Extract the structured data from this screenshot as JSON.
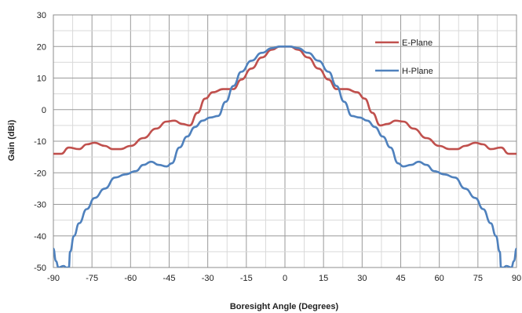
{
  "chart_data": {
    "type": "line",
    "title": "",
    "xlabel": "Boresight Angle (Degrees)",
    "ylabel": "Gain (dBi)",
    "xlim": [
      -90,
      90
    ],
    "ylim": [
      -50,
      30
    ],
    "xticks": [
      -90,
      -75,
      -60,
      -45,
      -30,
      -15,
      0,
      15,
      30,
      45,
      60,
      75,
      90
    ],
    "yticks": [
      30,
      20,
      10,
      0,
      -10,
      -20,
      -30,
      -40,
      -50
    ],
    "grid": true,
    "legend_position": "top-right",
    "series": [
      {
        "name": "E-Plane",
        "color": "#c0504d",
        "points": [
          [
            -90,
            -14
          ],
          [
            -87,
            -14
          ],
          [
            -84,
            -12
          ],
          [
            -80,
            -12.5
          ],
          [
            -77,
            -11
          ],
          [
            -74,
            -10.5
          ],
          [
            -70,
            -11.5
          ],
          [
            -67,
            -12.5
          ],
          [
            -64,
            -12.5
          ],
          [
            -60,
            -11.5
          ],
          [
            -55,
            -9
          ],
          [
            -50,
            -6
          ],
          [
            -46,
            -3.8
          ],
          [
            -43,
            -3.5
          ],
          [
            -40,
            -4.5
          ],
          [
            -37,
            -5
          ],
          [
            -34,
            -1
          ],
          [
            -31,
            3.5
          ],
          [
            -28,
            5.5
          ],
          [
            -24,
            6.5
          ],
          [
            -20,
            6.5
          ],
          [
            -17,
            9.5
          ],
          [
            -13,
            13
          ],
          [
            -9,
            16.5
          ],
          [
            -5,
            19
          ],
          [
            -2,
            20
          ],
          [
            0,
            20
          ],
          [
            2,
            20
          ],
          [
            5,
            19
          ],
          [
            9,
            16.5
          ],
          [
            13,
            13
          ],
          [
            17,
            9.5
          ],
          [
            20,
            6.5
          ],
          [
            24,
            6.5
          ],
          [
            28,
            5.5
          ],
          [
            31,
            3.5
          ],
          [
            34,
            -1
          ],
          [
            37,
            -5
          ],
          [
            40,
            -4.5
          ],
          [
            43,
            -3.5
          ],
          [
            46,
            -3.8
          ],
          [
            50,
            -6
          ],
          [
            55,
            -9
          ],
          [
            60,
            -11.5
          ],
          [
            64,
            -12.5
          ],
          [
            67,
            -12.5
          ],
          [
            70,
            -11.5
          ],
          [
            74,
            -10.5
          ],
          [
            77,
            -11
          ],
          [
            80,
            -12.5
          ],
          [
            84,
            -12
          ],
          [
            87,
            -14
          ],
          [
            90,
            -14
          ]
        ]
      },
      {
        "name": "H-Plane",
        "color": "#4f81bd",
        "points": [
          [
            -90,
            -44
          ],
          [
            -89,
            -48
          ],
          [
            -88,
            -50
          ],
          [
            -86,
            -49.5
          ],
          [
            -85,
            -50
          ],
          [
            -84,
            -50
          ],
          [
            -83.5,
            -45
          ],
          [
            -82,
            -40
          ],
          [
            -80,
            -36
          ],
          [
            -77,
            -31.5
          ],
          [
            -74,
            -28
          ],
          [
            -70,
            -25
          ],
          [
            -66,
            -21.5
          ],
          [
            -62,
            -20.5
          ],
          [
            -58,
            -19.5
          ],
          [
            -55,
            -17.5
          ],
          [
            -52,
            -16.5
          ],
          [
            -49,
            -17.5
          ],
          [
            -46,
            -18
          ],
          [
            -44,
            -17
          ],
          [
            -41,
            -12
          ],
          [
            -38,
            -8.5
          ],
          [
            -35,
            -5.5
          ],
          [
            -32,
            -3.5
          ],
          [
            -29,
            -2.5
          ],
          [
            -26,
            -2
          ],
          [
            -23,
            2.5
          ],
          [
            -20,
            7.5
          ],
          [
            -17,
            12
          ],
          [
            -13,
            15.5
          ],
          [
            -9,
            18
          ],
          [
            -5,
            19.5
          ],
          [
            -2,
            20
          ],
          [
            0,
            20
          ],
          [
            2,
            20
          ],
          [
            5,
            19.5
          ],
          [
            9,
            18
          ],
          [
            13,
            15.5
          ],
          [
            17,
            12
          ],
          [
            20,
            7.5
          ],
          [
            23,
            2.5
          ],
          [
            26,
            -2
          ],
          [
            29,
            -2.5
          ],
          [
            32,
            -3.5
          ],
          [
            35,
            -5.5
          ],
          [
            38,
            -8.5
          ],
          [
            41,
            -12
          ],
          [
            44,
            -17
          ],
          [
            46,
            -18
          ],
          [
            49,
            -17.5
          ],
          [
            52,
            -16.5
          ],
          [
            55,
            -17.5
          ],
          [
            58,
            -19.5
          ],
          [
            62,
            -20.5
          ],
          [
            66,
            -21.5
          ],
          [
            70,
            -25
          ],
          [
            74,
            -28
          ],
          [
            77,
            -31.5
          ],
          [
            80,
            -36
          ],
          [
            82,
            -40
          ],
          [
            83.5,
            -45
          ],
          [
            84,
            -50
          ],
          [
            85,
            -50
          ],
          [
            86,
            -49.5
          ],
          [
            88,
            -50
          ],
          [
            89,
            -48
          ],
          [
            90,
            -44
          ]
        ]
      }
    ]
  }
}
